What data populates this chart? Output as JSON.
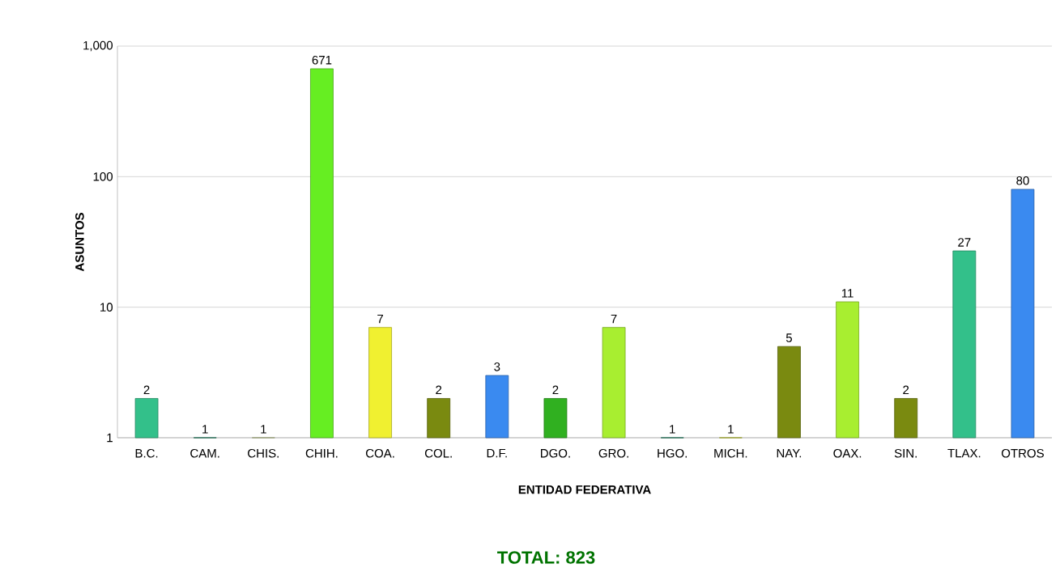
{
  "chart_data": {
    "type": "bar",
    "xlabel": "ENTIDAD FEDERATIVA",
    "ylabel": "ASUNTOS",
    "categories": [
      "B.C.",
      "CAM.",
      "CHIS.",
      "CHIH.",
      "COA.",
      "COL.",
      "D.F.",
      "DGO.",
      "GRO.",
      "HGO.",
      "MICH.",
      "NAY.",
      "OAX.",
      "SIN.",
      "TLAX.",
      "OTROS"
    ],
    "values": [
      2,
      1,
      1,
      671,
      7,
      2,
      3,
      2,
      7,
      1,
      1,
      5,
      11,
      2,
      27,
      80
    ],
    "colors": [
      "#33c08a",
      "#1e8c6a",
      "#d4dca0",
      "#66ee22",
      "#f0f030",
      "#7a8a10",
      "#3a8af0",
      "#30b020",
      "#a8ee30",
      "#1e8c6a",
      "#d8e030",
      "#7a8a10",
      "#a8ee30",
      "#7a8a10",
      "#33c08a",
      "#3a8af0"
    ],
    "log": "y",
    "ylim": [
      1,
      1000
    ],
    "yticks": [
      1,
      10,
      100,
      {
        "value": 1000,
        "label": "1,000"
      }
    ],
    "grid": "y",
    "data_labels": true,
    "annotations": [
      "TOTAL:   823"
    ]
  }
}
